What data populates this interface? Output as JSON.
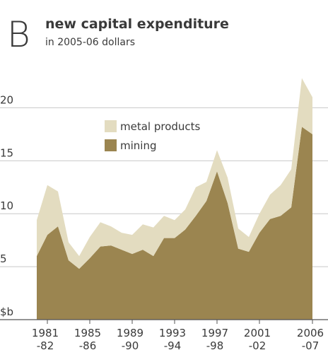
{
  "chart_data": {
    "type": "stacked_area",
    "panel_letter": "B",
    "title": "new capital expenditure",
    "subtitle": "in 2005-06 dollars",
    "categories": [
      null,
      "1981-82",
      null,
      null,
      null,
      "1985-86",
      null,
      null,
      null,
      "1989-90",
      null,
      null,
      null,
      "1993-94",
      null,
      null,
      null,
      "1997-98",
      null,
      null,
      null,
      "2001-02",
      null,
      null,
      null,
      null,
      "2006-07"
    ],
    "series": [
      {
        "name": "mining",
        "color": "#9b8550",
        "values": [
          6.0,
          8.0,
          8.8,
          5.6,
          4.8,
          5.8,
          6.9,
          7.0,
          6.6,
          6.2,
          6.6,
          6.0,
          7.7,
          7.7,
          8.5,
          9.8,
          11.2,
          14.0,
          11.0,
          6.7,
          6.4,
          8.2,
          9.5,
          9.8,
          10.6,
          18.2,
          17.5
        ]
      },
      {
        "name": "metal products",
        "color": "#e3dcc0",
        "values": [
          3.4,
          4.7,
          3.3,
          1.7,
          1.2,
          2.0,
          2.3,
          1.8,
          1.6,
          1.8,
          2.4,
          2.7,
          2.1,
          1.7,
          1.9,
          2.7,
          1.8,
          2.0,
          2.4,
          1.9,
          1.4,
          1.8,
          2.3,
          2.9,
          3.6,
          4.6,
          3.5
        ]
      }
    ],
    "ylim": [
      0,
      23.5
    ],
    "yticks": [
      {
        "value": 0,
        "label": "$b"
      },
      5,
      10,
      15,
      20
    ],
    "grid": true,
    "legend": "upper left"
  }
}
